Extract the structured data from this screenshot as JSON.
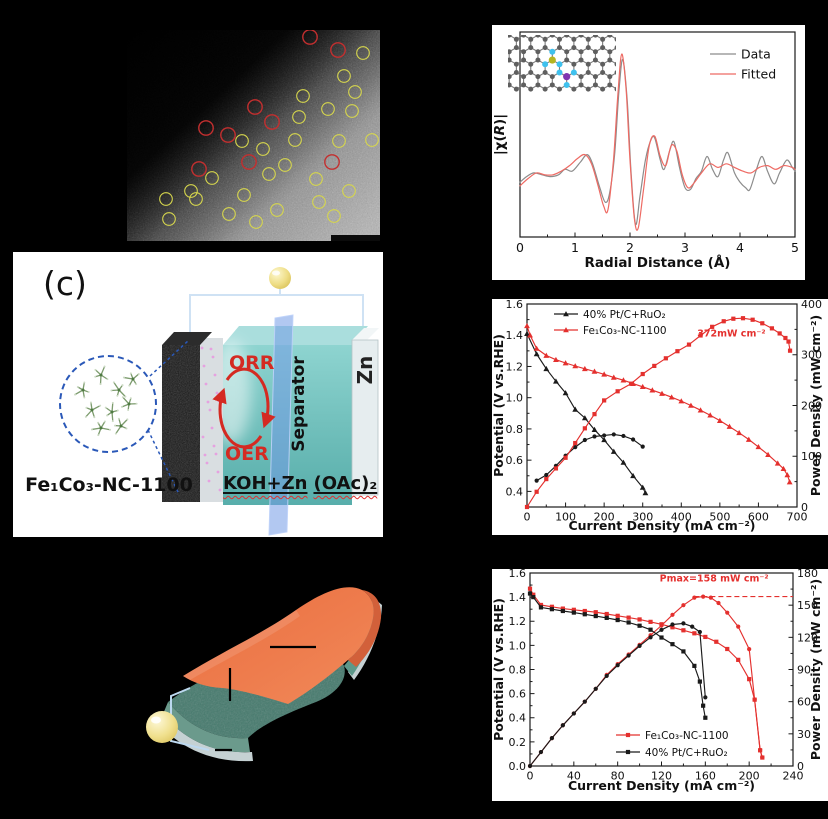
{
  "figure": {
    "panel_label_c": "(c)",
    "battery": {
      "catalyst_label": "Fe₁Co₃-NC-1100",
      "orr_label": "ORR",
      "oer_label": "OER",
      "separator_label": "Separator",
      "zn_label": "Zn",
      "electrolyte_label_1": "KOH+Zn",
      "electrolyte_label_2": "(OAc)₂"
    },
    "tem": {
      "red_color": "#c32f2f",
      "yellow_color": "#d6d64d",
      "red_circles": [
        [
          183,
          7
        ],
        [
          211,
          20
        ],
        [
          128,
          77
        ],
        [
          145,
          92
        ],
        [
          79,
          98
        ],
        [
          101,
          105
        ],
        [
          122,
          132
        ],
        [
          205,
          132
        ],
        [
          72,
          139
        ]
      ],
      "yellow_circles": [
        [
          236,
          23
        ],
        [
          217,
          46
        ],
        [
          176,
          66
        ],
        [
          228,
          62
        ],
        [
          201,
          79
        ],
        [
          225,
          81
        ],
        [
          172,
          87
        ],
        [
          115,
          111
        ],
        [
          136,
          119
        ],
        [
          168,
          110
        ],
        [
          212,
          111
        ],
        [
          245,
          110
        ],
        [
          85,
          148
        ],
        [
          117,
          165
        ],
        [
          142,
          144
        ],
        [
          158,
          135
        ],
        [
          189,
          149
        ],
        [
          222,
          161
        ],
        [
          64,
          161
        ],
        [
          69,
          169
        ],
        [
          39,
          169
        ],
        [
          42,
          189
        ],
        [
          102,
          184
        ],
        [
          129,
          192
        ],
        [
          150,
          180
        ],
        [
          207,
          186
        ],
        [
          192,
          172
        ]
      ]
    },
    "molecule_inset_colors": {
      "matrix": "#5f5f5f",
      "bond": "#7a7a7a",
      "nitrogen": "#3fc1ee",
      "fe": "#b5b520",
      "co": "#8136b0"
    }
  },
  "chart_data": [
    {
      "id": "exafs",
      "type": "line",
      "xlabel": "Radial Distance (Å)",
      "ylabel": "|χ(R)|",
      "xlim": [
        0,
        5
      ],
      "ylim_left": [
        0,
        1.12
      ],
      "xticks": [
        "0",
        "1",
        "2",
        "3",
        "4",
        "5"
      ],
      "grid": false,
      "legend_position": "top-right",
      "legend_items": [
        {
          "label": "Data",
          "color": "#8c8c8c",
          "marker": "line"
        },
        {
          "label": "Fitted",
          "color": "#ee6a63",
          "marker": "line"
        }
      ],
      "series": [
        {
          "name": "Data",
          "axis": "left",
          "color": "#8c8c8c",
          "marker": "none",
          "smooth": true,
          "x": [
            0,
            0.12,
            0.25,
            0.4,
            0.55,
            0.7,
            0.82,
            0.95,
            1.1,
            1.22,
            1.32,
            1.45,
            1.55,
            1.63,
            1.72,
            1.8,
            1.87,
            1.95,
            2.02,
            2.1,
            2.18,
            2.28,
            2.38,
            2.45,
            2.55,
            2.62,
            2.72,
            2.8,
            2.9,
            3.0,
            3.1,
            3.2,
            3.3,
            3.4,
            3.5,
            3.6,
            3.7,
            3.78,
            3.9,
            4.0,
            4.1,
            4.18,
            4.3,
            4.4,
            4.5,
            4.62,
            4.72,
            4.85,
            4.95,
            5.0
          ],
          "y": [
            0.3,
            0.33,
            0.35,
            0.34,
            0.33,
            0.34,
            0.37,
            0.36,
            0.41,
            0.45,
            0.4,
            0.27,
            0.19,
            0.24,
            0.45,
            0.8,
            0.97,
            0.74,
            0.35,
            0.07,
            0.22,
            0.42,
            0.53,
            0.54,
            0.42,
            0.37,
            0.47,
            0.52,
            0.38,
            0.27,
            0.26,
            0.32,
            0.36,
            0.44,
            0.37,
            0.33,
            0.42,
            0.46,
            0.35,
            0.3,
            0.27,
            0.26,
            0.37,
            0.44,
            0.36,
            0.29,
            0.35,
            0.42,
            0.38,
            0.36
          ]
        },
        {
          "name": "Fitted",
          "axis": "left",
          "color": "#ee6a63",
          "marker": "none",
          "smooth": true,
          "x": [
            0,
            0.15,
            0.3,
            0.45,
            0.6,
            0.75,
            0.9,
            1.05,
            1.18,
            1.3,
            1.42,
            1.52,
            1.6,
            1.7,
            1.78,
            1.85,
            1.93,
            2.0,
            2.08,
            2.15,
            2.25,
            2.35,
            2.45,
            2.55,
            2.65,
            2.75,
            2.85,
            2.95,
            3.05,
            3.15,
            3.3,
            3.45,
            3.6,
            3.75,
            3.9,
            4.05,
            4.2,
            4.35,
            4.5,
            4.65,
            4.8,
            4.95,
            5.0
          ],
          "y": [
            0.28,
            0.32,
            0.35,
            0.34,
            0.34,
            0.36,
            0.39,
            0.43,
            0.45,
            0.4,
            0.28,
            0.17,
            0.15,
            0.42,
            0.78,
            1.0,
            0.8,
            0.42,
            0.1,
            0.05,
            0.27,
            0.5,
            0.55,
            0.44,
            0.39,
            0.5,
            0.47,
            0.34,
            0.27,
            0.29,
            0.35,
            0.4,
            0.38,
            0.4,
            0.38,
            0.36,
            0.35,
            0.38,
            0.39,
            0.37,
            0.39,
            0.38,
            0.37
          ]
        }
      ]
    },
    {
      "id": "zn_air_performance",
      "type": "line",
      "xlabel": "Current Density (mA cm⁻²)",
      "ylabel": "Potential (V vs.RHE)",
      "ylabel_right": "Power Density (mW cm⁻²)",
      "xlim": [
        0,
        700
      ],
      "ylim_left": [
        0.3,
        1.6
      ],
      "ylim_right": [
        0,
        400
      ],
      "xticks": [
        "0",
        "100",
        "200",
        "300",
        "400",
        "500",
        "600",
        "700"
      ],
      "yticks_left": [
        "0.4",
        "0.6",
        "0.8",
        "1.0",
        "1.2",
        "1.4",
        "1.6"
      ],
      "yticks_right": [
        "0",
        "100",
        "200",
        "300",
        "400"
      ],
      "grid": false,
      "legend_position": "top-left",
      "legend_items": [
        {
          "label": "40% Pt/C+RuO₂",
          "color": "#1a1a1a",
          "marker": "triangle"
        },
        {
          "label": "Fe₁Co₃-NC-1100",
          "color": "#e4302e",
          "marker": "triangle"
        }
      ],
      "annotations": [
        {
          "text": "372mW cm⁻²",
          "x": 530,
          "y": 336,
          "axis": "right",
          "color": "#e4302e"
        }
      ],
      "series": [
        {
          "name": "40% Pt/C+RuO₂ potential",
          "axis": "left",
          "color": "#1a1a1a",
          "marker": "triangle",
          "x": [
            0,
            25,
            50,
            75,
            100,
            125,
            150,
            175,
            200,
            225,
            250,
            275,
            300,
            307
          ],
          "y": [
            1.41,
            1.28,
            1.185,
            1.105,
            1.03,
            0.925,
            0.87,
            0.795,
            0.73,
            0.655,
            0.585,
            0.5,
            0.425,
            0.39
          ]
        },
        {
          "name": "40% Pt/C+RuO₂ power",
          "axis": "right",
          "color": "#1a1a1a",
          "marker": "circle",
          "x": [
            25,
            50,
            75,
            100,
            125,
            150,
            175,
            200,
            225,
            250,
            275,
            300
          ],
          "y": [
            52,
            63,
            81,
            101,
            118,
            132,
            139,
            141,
            143,
            140,
            133,
            119
          ]
        },
        {
          "name": "Fe₁Co₃-NC-1100 potential",
          "axis": "left",
          "color": "#e4302e",
          "marker": "triangle",
          "x": [
            0,
            8,
            25,
            50,
            75,
            100,
            125,
            150,
            175,
            200,
            225,
            250,
            275,
            300,
            325,
            350,
            375,
            400,
            425,
            450,
            475,
            500,
            525,
            550,
            575,
            600,
            625,
            650,
            665,
            675,
            681
          ],
          "y": [
            1.46,
            1.4,
            1.315,
            1.27,
            1.243,
            1.222,
            1.203,
            1.185,
            1.168,
            1.15,
            1.13,
            1.112,
            1.09,
            1.07,
            1.048,
            1.026,
            1.003,
            0.978,
            0.95,
            0.92,
            0.888,
            0.853,
            0.815,
            0.775,
            0.732,
            0.685,
            0.635,
            0.58,
            0.545,
            0.505,
            0.46
          ]
        },
        {
          "name": "Fe₁Co₃-NC-1100 power",
          "axis": "right",
          "color": "#e4302e",
          "marker": "square",
          "x": [
            0,
            25,
            50,
            75,
            100,
            125,
            150,
            175,
            200,
            235,
            270,
            300,
            330,
            360,
            390,
            420,
            450,
            480,
            510,
            535,
            560,
            585,
            610,
            635,
            655,
            670,
            678,
            682
          ],
          "y": [
            0,
            30,
            55,
            76,
            97,
            126,
            155,
            183,
            210,
            228,
            243,
            262,
            278,
            293,
            307,
            320,
            338,
            355,
            366,
            371,
            372,
            369,
            362,
            352,
            342,
            333,
            326,
            308
          ]
        }
      ]
    },
    {
      "id": "flexible_zn_air_performance",
      "type": "line",
      "xlabel": "Current Density (mA cm⁻²)",
      "ylabel": "Potential (V vs.RHE)",
      "ylabel_right": "Power Density (mW cm⁻²)",
      "xlim": [
        0,
        240
      ],
      "ylim_left": [
        0,
        1.6
      ],
      "ylim_right": [
        0,
        180
      ],
      "xticks": [
        "0",
        "40",
        "80",
        "120",
        "160",
        "200",
        "240"
      ],
      "yticks_left": [
        "0.0",
        "0.2",
        "0.4",
        "0.6",
        "0.8",
        "1.0",
        "1.2",
        "1.4",
        "1.6"
      ],
      "yticks_right": [
        "0",
        "30",
        "60",
        "90",
        "120",
        "150",
        "180"
      ],
      "grid": false,
      "legend_position": "bottom-center",
      "legend_items": [
        {
          "label": "Fe₁Co₃-NC-1100",
          "color": "#e4302e",
          "marker": "square"
        },
        {
          "label": "40% Pt/C+RuO₂",
          "color": "#1a1a1a",
          "marker": "square"
        }
      ],
      "annotations": [
        {
          "text": "Pmax=158 mW cm⁻²",
          "x": 168,
          "y": 172,
          "axis": "right",
          "color": "#e4302e"
        }
      ],
      "ref_line": {
        "axis": "right",
        "y": 158,
        "x1": 150,
        "x2": 240,
        "color": "#e4302e"
      },
      "series": [
        {
          "name": "Fe₁Co₃-NC-1100 potential",
          "axis": "left",
          "color": "#e4302e",
          "marker": "square",
          "x": [
            0,
            3,
            10,
            20,
            30,
            40,
            50,
            60,
            70,
            80,
            90,
            100,
            110,
            120,
            130,
            140,
            150,
            160,
            170,
            180,
            190,
            200,
            205,
            210,
            212
          ],
          "y": [
            1.47,
            1.42,
            1.335,
            1.32,
            1.305,
            1.295,
            1.285,
            1.275,
            1.26,
            1.245,
            1.23,
            1.215,
            1.195,
            1.175,
            1.15,
            1.125,
            1.1,
            1.07,
            1.03,
            0.97,
            0.88,
            0.72,
            0.55,
            0.13,
            0.07
          ]
        },
        {
          "name": "Fe₁Co₃-NC-1100 power",
          "axis": "right",
          "color": "#e4302e",
          "marker": "circle",
          "x": [
            0,
            10,
            20,
            30,
            40,
            50,
            60,
            70,
            80,
            90,
            100,
            110,
            120,
            130,
            140,
            150,
            158,
            165,
            172,
            180,
            190,
            200,
            205,
            210,
            212
          ],
          "y": [
            0,
            13,
            26,
            38,
            49,
            60,
            72,
            85,
            95,
            104,
            113,
            122,
            131,
            141,
            150,
            157,
            158,
            157,
            152,
            143,
            130,
            109,
            62,
            15,
            8
          ]
        },
        {
          "name": "40% Pt/C+RuO₂ potential",
          "axis": "left",
          "color": "#1a1a1a",
          "marker": "square",
          "x": [
            0,
            3,
            10,
            20,
            30,
            40,
            50,
            60,
            70,
            80,
            90,
            100,
            110,
            120,
            130,
            140,
            150,
            155,
            158,
            160
          ],
          "y": [
            1.43,
            1.4,
            1.315,
            1.3,
            1.285,
            1.272,
            1.258,
            1.243,
            1.228,
            1.21,
            1.19,
            1.163,
            1.13,
            1.065,
            1.01,
            0.95,
            0.83,
            0.7,
            0.5,
            0.4
          ]
        },
        {
          "name": "40% Pt/C+RuO₂ power",
          "axis": "right",
          "color": "#1a1a1a",
          "marker": "circle",
          "x": [
            0,
            10,
            20,
            30,
            40,
            50,
            60,
            70,
            80,
            90,
            100,
            110,
            120,
            130,
            140,
            148,
            155,
            160
          ],
          "y": [
            0,
            13,
            26,
            38,
            49,
            60,
            72,
            84,
            94,
            103,
            112,
            120,
            127,
            132,
            133,
            130,
            125,
            64
          ]
        }
      ]
    }
  ]
}
